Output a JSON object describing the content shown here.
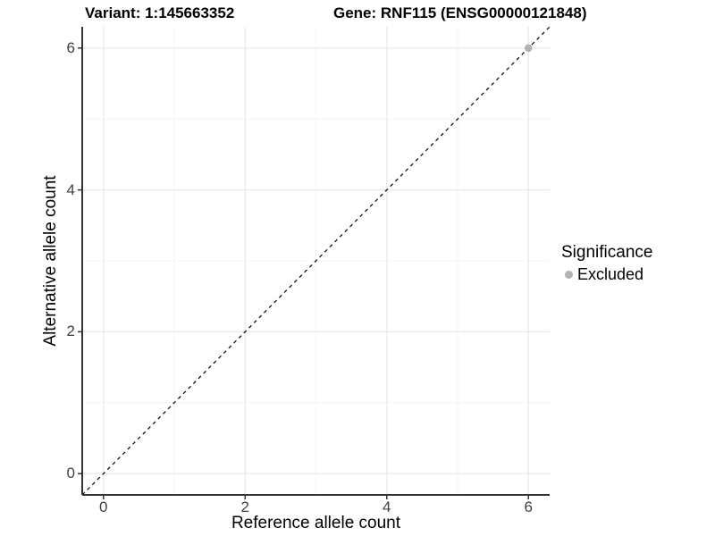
{
  "chart_data": {
    "type": "scatter",
    "titles": {
      "variant": "Variant: 1:145663352",
      "gene": "Gene: RNF115 (ENSG00000121848)"
    },
    "xlabel": "Reference allele count",
    "ylabel": "Alternative allele count",
    "xlim": [
      -0.3,
      6.3
    ],
    "ylim": [
      -0.3,
      6.3
    ],
    "x_major_ticks": [
      0,
      2,
      4,
      6
    ],
    "y_major_ticks": [
      0,
      2,
      4,
      6
    ],
    "x_minor_gridlines": [
      1,
      3,
      5
    ],
    "y_minor_gridlines": [
      1,
      3,
      5
    ],
    "grid": true,
    "points": [
      {
        "x": 6,
        "y": 6,
        "significance": "Excluded",
        "color": "#b3b3b3"
      }
    ],
    "reference_line": {
      "kind": "identity",
      "slope": 1,
      "intercept": 0,
      "style": "dashed",
      "color": "#000000"
    },
    "legend": {
      "title": "Significance",
      "position": "right",
      "items": [
        {
          "label": "Excluded",
          "color": "#b3b3b3"
        }
      ]
    },
    "colors": {
      "grid_major": "#e9e9e9",
      "grid_minor": "#f4f4f4",
      "axis_line": "#333333",
      "tick_label": "#404040",
      "point": "#b3b3b3",
      "title_text": "#000000"
    }
  }
}
